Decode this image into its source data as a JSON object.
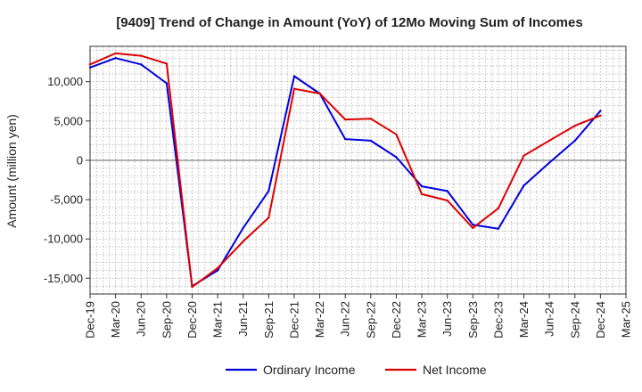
{
  "chart_data": {
    "type": "line",
    "title": "[9409]  Trend of Change in Amount (YoY) of 12Mo Moving Sum of Incomes",
    "xlabel": "",
    "ylabel": "Amount (million yen)",
    "ylim": [
      -17000,
      14500
    ],
    "yticks": [
      -15000,
      -10000,
      -5000,
      0,
      5000,
      10000
    ],
    "ytick_labels": [
      "-15,000",
      "-10,000",
      "-5,000",
      "0",
      "5,000",
      "10,000"
    ],
    "categories": [
      "Dec-19",
      "Mar-20",
      "Jun-20",
      "Sep-20",
      "Dec-20",
      "Mar-21",
      "Jun-21",
      "Sep-21",
      "Dec-21",
      "Mar-22",
      "Jun-22",
      "Sep-22",
      "Dec-22",
      "Mar-23",
      "Jun-23",
      "Sep-23",
      "Dec-23",
      "Mar-24",
      "Jun-24",
      "Sep-24",
      "Dec-24",
      "Mar-25"
    ],
    "grid": true,
    "legend_position": "bottom",
    "series": [
      {
        "name": "Ordinary Income",
        "color": "#0000dd",
        "values": [
          11800,
          13000,
          12200,
          9800,
          -16000,
          -14000,
          -8600,
          -3900,
          10700,
          8500,
          2700,
          2500,
          400,
          -3300,
          -3900,
          -8200,
          -8700,
          -3200,
          -300,
          2500,
          6300,
          null
        ]
      },
      {
        "name": "Net Income",
        "color": "#dd0000",
        "values": [
          12200,
          13600,
          13300,
          12300,
          -16100,
          -13700,
          -10300,
          -7300,
          9100,
          8500,
          5200,
          5300,
          3300,
          -4300,
          -5100,
          -8600,
          -6100,
          600,
          2500,
          4400,
          5700,
          null
        ]
      }
    ]
  }
}
